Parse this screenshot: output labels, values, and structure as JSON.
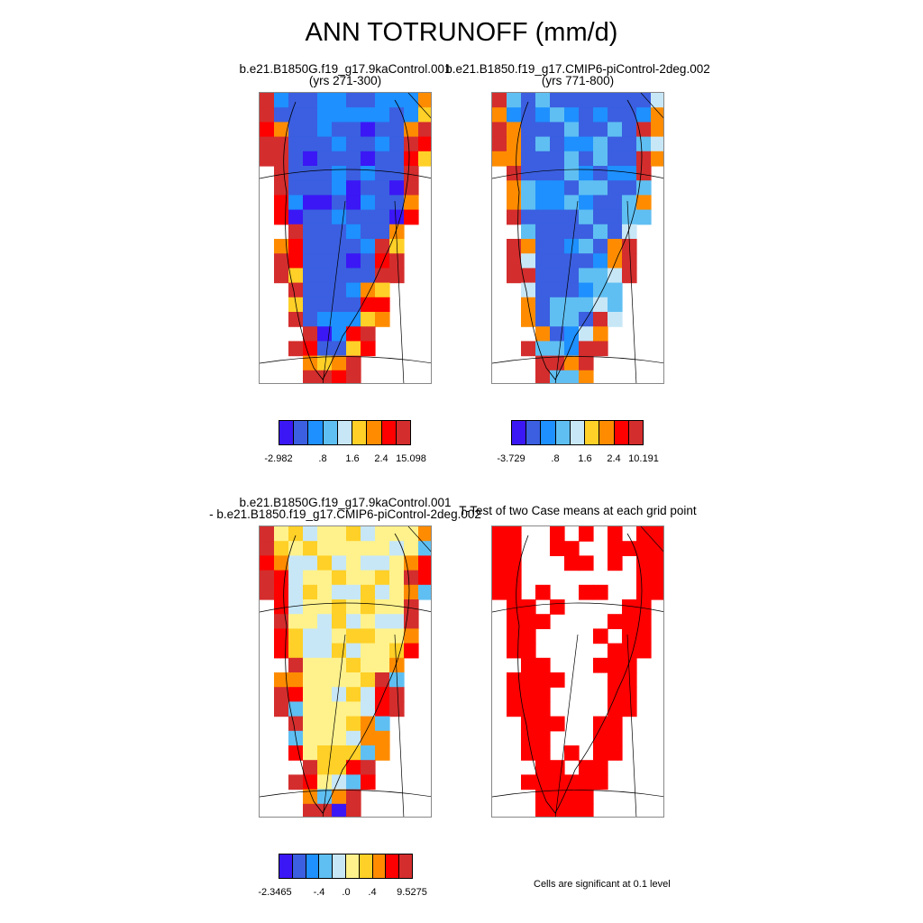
{
  "title": "ANN TOTRUNOFF (mm/d)",
  "colors": {
    "pal_abs": [
      "#3b17f5",
      "#3b5fe0",
      "#1e90ff",
      "#5fbff2",
      "#c7e7f7",
      "#ffd027",
      "#ff8c00",
      "#ff0000",
      "#d42d2d"
    ],
    "pal_diff": [
      "#3b17f5",
      "#3b5fe0",
      "#1e90ff",
      "#5fbff2",
      "#c7e7f7",
      "#fff28c",
      "#ffd027",
      "#ff8c00",
      "#ff0000",
      "#d42d2d"
    ],
    "significant": "#ff0000"
  },
  "panels": {
    "case1": {
      "line1": "b.e21.B1850G.f19_g17.9kaControl.001",
      "line2": "(yrs 271-300)"
    },
    "case2": {
      "line1": "b.e21.B1850.f19_g17.CMIP6-piControl-2deg.002",
      "line2": "(yrs 771-800)"
    },
    "diff": {
      "line1": "b.e21.B1850G.f19_g17.9kaControl.001",
      "line2": "- b.e21.B1850.f19_g17.CMIP6-piControl-2deg.002"
    },
    "ttest": {
      "line1": "T-Test of two Case means at each grid point",
      "note": "Cells are significant at 0.1 level"
    }
  },
  "chart_data": [
    {
      "type": "heatmap",
      "title": "b.e21.B1850G.f19_g17.9kaControl.001 (yrs 271-300)",
      "colorbar_labels": [
        "-2.982",
        ".8",
        "1.6",
        "2.4",
        "15.098"
      ],
      "pattern": "interior-low-margin-high"
    },
    {
      "type": "heatmap",
      "title": "b.e21.B1850.f19_g17.CMIP6-piControl-2deg.002 (yrs 771-800)",
      "colorbar_labels": [
        "-3.729",
        ".8",
        "1.6",
        "2.4",
        "10.191"
      ],
      "pattern": "interior-low-margin-high"
    },
    {
      "type": "heatmap",
      "title": "b.e21.B1850G.f19_g17.9kaControl.001 - b.e21.B1850.f19_g17.CMIP6-piControl-2deg.002",
      "colorbar_labels": [
        "-2.3465",
        "-.4",
        ".0",
        ".4",
        "9.5275"
      ],
      "pattern": "interior-near-zero-margin-positive"
    },
    {
      "type": "heatmap",
      "title": "T-Test of two Case means at each grid point",
      "significance_level": 0.1,
      "pattern": "margin-significant"
    }
  ]
}
